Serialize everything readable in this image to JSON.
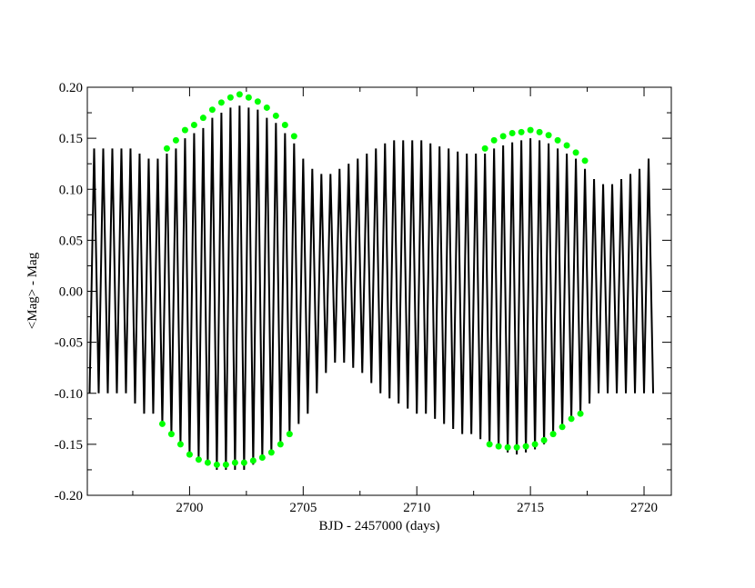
{
  "chart_data": {
    "type": "line",
    "xlabel": "BJD - 2457000 (days)",
    "ylabel": "<Mag> - Mag",
    "xlim": [
      2695.5,
      2721.2
    ],
    "ylim": [
      -0.2,
      0.2
    ],
    "xticks": [
      2700,
      2705,
      2710,
      2715,
      2720
    ],
    "xminorticks": [
      2697.5,
      2702.5,
      2707.5,
      2712.5,
      2717.5
    ],
    "yticks": [
      {
        "value": -0.2,
        "label": "-0.20"
      },
      {
        "value": -0.15,
        "label": "-0.15"
      },
      {
        "value": -0.1,
        "label": "-0.10"
      },
      {
        "value": -0.05,
        "label": "-0.05"
      },
      {
        "value": 0,
        "label": "0.00"
      },
      {
        "value": 0.05,
        "label": "0.05"
      },
      {
        "value": 0.1,
        "label": "0.10"
      },
      {
        "value": 0.15,
        "label": "0.15"
      },
      {
        "value": 0.2,
        "label": "0.20"
      }
    ],
    "yminorticks": [
      -0.175,
      -0.125,
      -0.075,
      -0.025,
      0.025,
      0.075,
      0.125,
      0.175
    ],
    "series": [
      {
        "color": "#000000",
        "style": "line",
        "x": [
          2695.6,
          2695.8,
          2696.0,
          2696.2,
          2696.4,
          2696.6,
          2696.8,
          2697.0,
          2697.2,
          2697.4,
          2697.6,
          2697.8,
          2698.0,
          2698.2,
          2698.4,
          2698.6,
          2698.8,
          2699.0,
          2699.2,
          2699.4,
          2699.6,
          2699.8,
          2700.0,
          2700.2,
          2700.4,
          2700.6,
          2700.8,
          2701.0,
          2701.2,
          2701.4,
          2701.6,
          2701.8,
          2702.0,
          2702.2,
          2702.4,
          2702.6,
          2702.8,
          2703.0,
          2703.2,
          2703.4,
          2703.6,
          2703.8,
          2704.0,
          2704.2,
          2704.4,
          2704.6,
          2704.8,
          2705.0,
          2705.2,
          2705.4,
          2705.6,
          2705.8,
          2706.0,
          2706.2,
          2706.4,
          2706.6,
          2706.8,
          2707.0,
          2707.2,
          2707.4,
          2707.6,
          2707.8,
          2708.0,
          2708.2,
          2708.4,
          2708.6,
          2708.8,
          2709.0,
          2709.2,
          2709.4,
          2709.6,
          2709.8,
          2710.0,
          2710.2,
          2710.4,
          2710.6,
          2710.8,
          2711.0,
          2711.2,
          2711.4,
          2711.6,
          2711.8,
          2712.0,
          2712.2,
          2712.4,
          2712.6,
          2712.8,
          2713.0,
          2713.2,
          2713.4,
          2713.6,
          2713.8,
          2714.0,
          2714.2,
          2714.4,
          2714.6,
          2714.8,
          2715.0,
          2715.2,
          2715.4,
          2715.6,
          2715.8,
          2716.0,
          2716.2,
          2716.4,
          2716.6,
          2716.8,
          2717.0,
          2717.2,
          2717.4,
          2717.6,
          2717.8,
          2718.0,
          2718.2,
          2718.4,
          2718.6,
          2718.8,
          2719.0,
          2719.2,
          2719.4,
          2719.6,
          2719.8,
          2720.0,
          2720.2,
          2720.4
        ],
        "values": [
          -0.1,
          0.14,
          -0.1,
          0.14,
          -0.1,
          0.14,
          -0.1,
          0.14,
          -0.1,
          0.14,
          -0.11,
          0.135,
          -0.12,
          0.13,
          -0.12,
          0.13,
          -0.13,
          0.135,
          -0.14,
          0.14,
          -0.15,
          0.15,
          -0.16,
          0.155,
          -0.165,
          0.16,
          -0.17,
          0.17,
          -0.175,
          0.175,
          -0.175,
          0.18,
          -0.175,
          0.182,
          -0.175,
          0.18,
          -0.17,
          0.178,
          -0.165,
          0.17,
          -0.16,
          0.165,
          -0.15,
          0.155,
          -0.14,
          0.145,
          -0.13,
          0.13,
          -0.12,
          0.12,
          -0.1,
          0.115,
          -0.08,
          0.115,
          -0.07,
          0.12,
          -0.07,
          0.125,
          -0.075,
          0.13,
          -0.08,
          0.135,
          -0.09,
          0.14,
          -0.1,
          0.145,
          -0.105,
          0.148,
          -0.11,
          0.148,
          -0.115,
          0.148,
          -0.12,
          0.148,
          -0.12,
          0.145,
          -0.125,
          0.142,
          -0.13,
          0.14,
          -0.135,
          0.137,
          -0.14,
          0.135,
          -0.14,
          0.135,
          -0.145,
          0.135,
          -0.15,
          0.14,
          -0.155,
          0.143,
          -0.158,
          0.146,
          -0.16,
          0.148,
          -0.158,
          0.15,
          -0.155,
          0.148,
          -0.15,
          0.145,
          -0.14,
          0.14,
          -0.135,
          0.135,
          -0.125,
          0.13,
          -0.12,
          0.12,
          -0.11,
          0.11,
          -0.1,
          0.105,
          -0.1,
          0.105,
          -0.1,
          0.11,
          -0.1,
          0.115,
          -0.1,
          0.12,
          -0.1,
          0.13,
          -0.1
        ]
      },
      {
        "color": "#00ff00",
        "style": "marker",
        "x": [
          2698.8,
          2699.0,
          2699.2,
          2699.4,
          2699.6,
          2699.8,
          2700.0,
          2700.2,
          2700.4,
          2700.6,
          2700.8,
          2701.0,
          2701.2,
          2701.4,
          2701.6,
          2701.8,
          2702.0,
          2702.2,
          2702.4,
          2702.6,
          2702.8,
          2703.0,
          2703.2,
          2703.4,
          2703.6,
          2703.8,
          2704.0,
          2704.2,
          2704.4,
          2704.6
        ],
        "values": [
          -0.13,
          0.14,
          -0.14,
          0.148,
          -0.15,
          0.158,
          -0.16,
          0.163,
          -0.165,
          0.17,
          -0.168,
          0.178,
          -0.17,
          0.185,
          -0.17,
          0.19,
          -0.168,
          0.193,
          -0.168,
          0.19,
          -0.166,
          0.186,
          -0.163,
          0.18,
          -0.158,
          0.172,
          -0.15,
          0.163,
          -0.14,
          0.152
        ]
      },
      {
        "color": "#00ff00",
        "style": "marker",
        "x": [
          2713.0,
          2713.2,
          2713.4,
          2713.6,
          2713.8,
          2714.0,
          2714.2,
          2714.4,
          2714.6,
          2714.8,
          2715.0,
          2715.2,
          2715.4,
          2715.6,
          2715.8,
          2716.0,
          2716.2,
          2716.4,
          2716.6,
          2716.8,
          2717.0,
          2717.2,
          2717.4
        ],
        "values": [
          0.14,
          -0.15,
          0.148,
          -0.152,
          0.152,
          -0.153,
          0.155,
          -0.153,
          0.156,
          -0.152,
          0.158,
          -0.15,
          0.156,
          -0.146,
          0.153,
          -0.14,
          0.148,
          -0.133,
          0.143,
          -0.125,
          0.136,
          -0.12,
          0.128
        ]
      }
    ]
  }
}
